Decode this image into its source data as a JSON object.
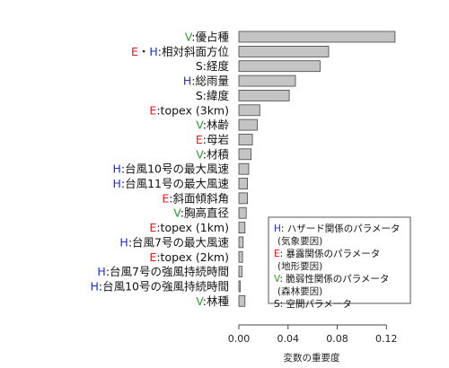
{
  "colors": {
    "H": "#1f2fd0",
    "E": "#d81f1f",
    "V": "#2e9e2e",
    "S": "#111111",
    "bar_fill": "#c4c4c4",
    "bar_stroke": "#444444"
  },
  "chart_data": {
    "type": "bar",
    "orientation": "horizontal",
    "xlabel": "変数の重要度",
    "xlim": [
      0,
      0.13
    ],
    "xticks": [
      0.0,
      0.04,
      0.08,
      0.12
    ],
    "xtick_labels": [
      "0.00",
      "0.04",
      "0.08",
      "0.12"
    ],
    "grid": false,
    "legend_position": "bottom-right",
    "bars": [
      {
        "prefix": [
          {
            "t": "V",
            "c": "V"
          }
        ],
        "name": ":優占種",
        "value": 0.127
      },
      {
        "prefix": [
          {
            "t": "E",
            "c": "E"
          },
          {
            "t": "・",
            "c": "S"
          },
          {
            "t": "H",
            "c": "H"
          }
        ],
        "name": ":相対斜面方位",
        "value": 0.073
      },
      {
        "prefix": [
          {
            "t": "S",
            "c": "S"
          }
        ],
        "name": ":経度",
        "value": 0.066
      },
      {
        "prefix": [
          {
            "t": "H",
            "c": "H"
          }
        ],
        "name": ":総雨量",
        "value": 0.046
      },
      {
        "prefix": [
          {
            "t": "S",
            "c": "S"
          }
        ],
        "name": ":緯度",
        "value": 0.041
      },
      {
        "prefix": [
          {
            "t": "E",
            "c": "E"
          }
        ],
        "name": ":topex (3km)",
        "value": 0.017
      },
      {
        "prefix": [
          {
            "t": "V",
            "c": "V"
          }
        ],
        "name": ":林齢",
        "value": 0.015
      },
      {
        "prefix": [
          {
            "t": "E",
            "c": "E"
          }
        ],
        "name": ":母岩",
        "value": 0.011
      },
      {
        "prefix": [
          {
            "t": "V",
            "c": "V"
          }
        ],
        "name": ":材積",
        "value": 0.01
      },
      {
        "prefix": [
          {
            "t": "H",
            "c": "H"
          }
        ],
        "name": ":台風10号の最大風速",
        "value": 0.008
      },
      {
        "prefix": [
          {
            "t": "H",
            "c": "H"
          }
        ],
        "name": ":台風11号の最大風速",
        "value": 0.007
      },
      {
        "prefix": [
          {
            "t": "E",
            "c": "E"
          }
        ],
        "name": ":斜面傾斜角",
        "value": 0.007
      },
      {
        "prefix": [
          {
            "t": "V",
            "c": "V"
          }
        ],
        "name": ":胸高直径",
        "value": 0.006
      },
      {
        "prefix": [
          {
            "t": "E",
            "c": "E"
          }
        ],
        "name": ":topex (1km)",
        "value": 0.005
      },
      {
        "prefix": [
          {
            "t": "H",
            "c": "H"
          }
        ],
        "name": ":台風7号の最大風速",
        "value": 0.0035
      },
      {
        "prefix": [
          {
            "t": "E",
            "c": "E"
          }
        ],
        "name": ":topex (2km)",
        "value": 0.003
      },
      {
        "prefix": [
          {
            "t": "H",
            "c": "H"
          }
        ],
        "name": ":台風7号の強風持続時間",
        "value": 0.0025
      },
      {
        "prefix": [
          {
            "t": "H",
            "c": "H"
          }
        ],
        "name": ":台風10号の強風持続時間",
        "value": 0.001
      },
      {
        "prefix": [
          {
            "t": "V",
            "c": "V"
          }
        ],
        "name": ":林種",
        "value": 0.005
      }
    ],
    "legend": [
      {
        "key": "H",
        "key_color": "H",
        "text": ": ハザード関係のパラメータ",
        "sub": "(気象要因)"
      },
      {
        "key": "E",
        "key_color": "E",
        "text": ": 暴露関係のパラメータ",
        "sub": "(地形要因)"
      },
      {
        "key": "V",
        "key_color": "V",
        "text": ": 脆弱性関係のパラメータ",
        "sub": "(森林要因)"
      },
      {
        "key": "S",
        "key_color": "S",
        "text": ": 空間パラメータ",
        "sub": ""
      }
    ]
  }
}
